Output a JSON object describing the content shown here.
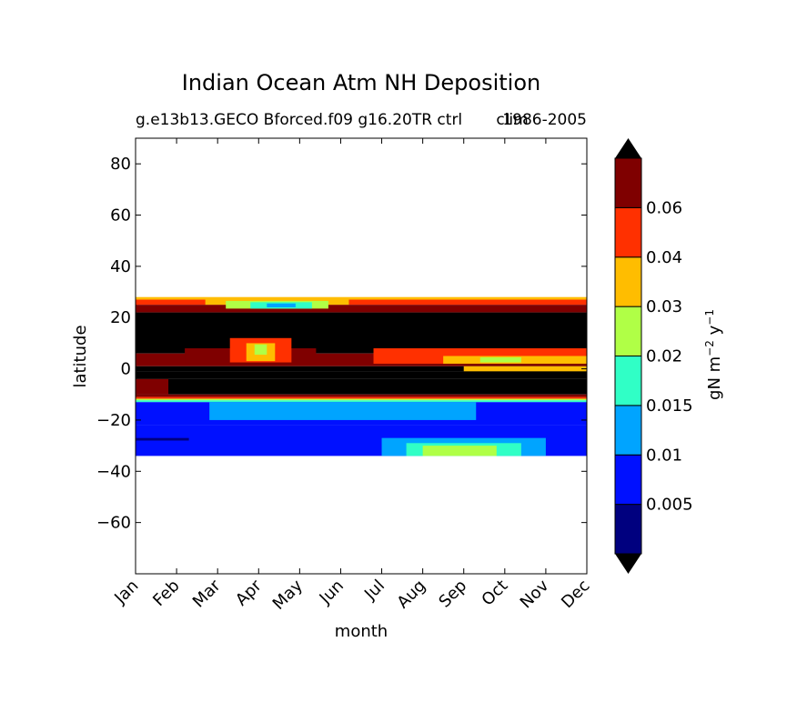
{
  "chart_data": {
    "type": "heatmap",
    "title": "Indian Ocean Atm NH Deposition",
    "subtitle_left": "g.e13b13.GECO Bforced.f09 g16.20TR ctrl",
    "subtitle_mid": "clim",
    "subtitle_right": "1986-2005",
    "xlabel": "month",
    "ylabel": "latitude",
    "x_categories": [
      "Jan",
      "Feb",
      "Mar",
      "Apr",
      "May",
      "Jun",
      "Jul",
      "Aug",
      "Sep",
      "Oct",
      "Nov",
      "Dec"
    ],
    "xlim": [
      0,
      11
    ],
    "ylim": [
      -80,
      90
    ],
    "y_ticks": [
      80,
      60,
      40,
      20,
      0,
      -20,
      -40,
      -60
    ],
    "y_tick_labels": [
      "80",
      "60",
      "40",
      "20",
      "0",
      "−20",
      "−40",
      "−60"
    ],
    "colorbar": {
      "label_text": "gN m",
      "label_exp1": "−2",
      "label_mid": " y",
      "label_exp2": "−1",
      "levels": [
        0.0,
        0.005,
        0.01,
        0.015,
        0.02,
        0.03,
        0.04,
        0.06,
        0.08
      ],
      "tick_values": [
        0.005,
        0.01,
        0.015,
        0.02,
        0.03,
        0.04,
        0.06
      ],
      "tick_labels": [
        "0.005",
        "0.01",
        "0.015",
        "0.02",
        "0.03",
        "0.04",
        "0.06"
      ],
      "colors": [
        "#00007f",
        "#0010ff",
        "#00a4ff",
        "#30ffc6",
        "#b0ff46",
        "#ffbd00",
        "#ff3000",
        "#7f0000"
      ],
      "extend_min_color": "#000000",
      "extend_max_color": "#000000"
    },
    "data_extent_lat": [
      -34,
      28
    ],
    "bands": [
      {
        "lat0": 27,
        "lat1": 28,
        "x0": 0,
        "x1": 11,
        "color": "#ffbd00"
      },
      {
        "lat0": 25,
        "lat1": 27,
        "x0": 0,
        "x1": 11,
        "color": "#ff3000"
      },
      {
        "lat0": 22,
        "lat1": 25,
        "x0": 0,
        "x1": 11,
        "color": "#7f0000"
      },
      {
        "lat0": 25,
        "lat1": 27,
        "x0": 1.7,
        "x1": 5.2,
        "color": "#ffbd00"
      },
      {
        "lat0": 23.5,
        "lat1": 26.5,
        "x0": 2.2,
        "x1": 4.7,
        "color": "#b0ff46"
      },
      {
        "lat0": 23.5,
        "lat1": 26,
        "x0": 2.8,
        "x1": 4.3,
        "color": "#30ffc6"
      },
      {
        "lat0": 24,
        "lat1": 25.5,
        "x0": 3.2,
        "x1": 3.9,
        "color": "#00a4ff"
      },
      {
        "lat0": 6,
        "lat1": 22,
        "x0": 0,
        "x1": 11,
        "color": "#000000"
      },
      {
        "lat0": 1,
        "lat1": 6,
        "x0": 0,
        "x1": 11,
        "color": "#7f0000"
      },
      {
        "lat0": 2,
        "lat1": 8,
        "x0": 1.2,
        "x1": 4.4,
        "color": "#7f0000"
      },
      {
        "lat0": 2.5,
        "lat1": 12,
        "x0": 2.3,
        "x1": 3.8,
        "color": "#ff3000"
      },
      {
        "lat0": 3,
        "lat1": 10,
        "x0": 2.7,
        "x1": 3.4,
        "color": "#ffbd00"
      },
      {
        "lat0": 5.5,
        "lat1": 9.5,
        "x0": 2.9,
        "x1": 3.2,
        "color": "#b0ff46"
      },
      {
        "lat0": 2,
        "lat1": 8,
        "x0": 5.8,
        "x1": 11,
        "color": "#ff3000"
      },
      {
        "lat0": 2,
        "lat1": 5,
        "x0": 7.5,
        "x1": 11,
        "color": "#ffbd00"
      },
      {
        "lat0": 2.5,
        "lat1": 4.5,
        "x0": 8.4,
        "x1": 9.4,
        "color": "#b0ff46"
      },
      {
        "lat0": -1,
        "lat1": 1,
        "x0": 0,
        "x1": 11,
        "color": "#000000"
      },
      {
        "lat0": -1,
        "lat1": 1,
        "x0": 8.0,
        "x1": 11,
        "color": "#ffbd00"
      },
      {
        "lat0": -4,
        "lat1": -1,
        "x0": 0,
        "x1": 11,
        "color": "#000000"
      },
      {
        "lat0": -10,
        "lat1": -4,
        "x0": 0,
        "x1": 11,
        "color": "#000000"
      },
      {
        "lat0": -10,
        "lat1": -4,
        "x0": 0,
        "x1": 0.8,
        "color": "#7f0000"
      },
      {
        "lat0": -11,
        "lat1": -10,
        "x0": 0,
        "x1": 11,
        "color": "#7f0000"
      },
      {
        "lat0": -11.7,
        "lat1": -11,
        "x0": 0,
        "x1": 11,
        "color": "#ff3000"
      },
      {
        "lat0": -12.3,
        "lat1": -11.7,
        "x0": 0,
        "x1": 11,
        "color": "#b0ff46"
      },
      {
        "lat0": -13,
        "lat1": -12.3,
        "x0": 0,
        "x1": 11,
        "color": "#30ffc6"
      },
      {
        "lat0": -22,
        "lat1": -13,
        "x0": 0,
        "x1": 11,
        "color": "#0010ff"
      },
      {
        "lat0": -20,
        "lat1": -13,
        "x0": 1.8,
        "x1": 8.3,
        "color": "#00a4ff"
      },
      {
        "lat0": -34,
        "lat1": -22,
        "x0": 0,
        "x1": 11,
        "color": "#0010ff"
      },
      {
        "lat0": -34,
        "lat1": -27,
        "x0": 6.0,
        "x1": 10.0,
        "color": "#00a4ff"
      },
      {
        "lat0": -34,
        "lat1": -29,
        "x0": 6.6,
        "x1": 9.4,
        "color": "#30ffc6"
      },
      {
        "lat0": -34,
        "lat1": -30,
        "x0": 7.0,
        "x1": 8.8,
        "color": "#b0ff46"
      },
      {
        "lat0": -28,
        "lat1": -27,
        "x0": 0,
        "x1": 1.3,
        "color": "#00007f"
      }
    ]
  }
}
